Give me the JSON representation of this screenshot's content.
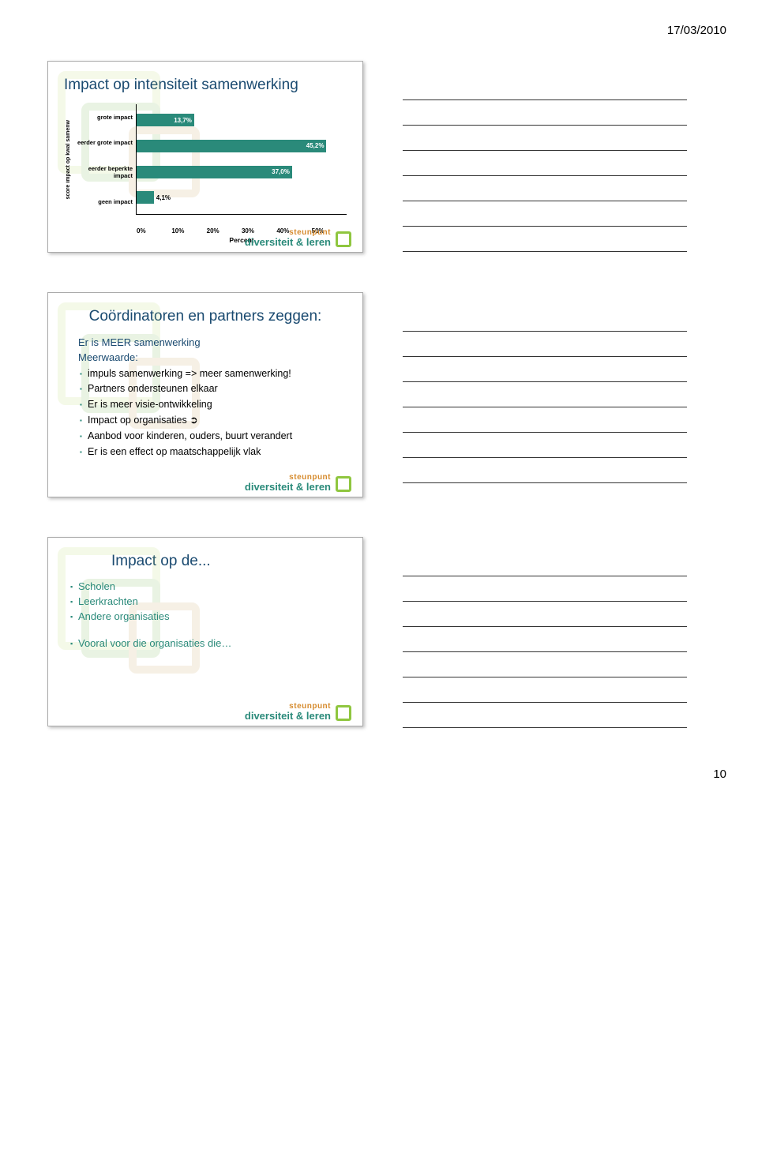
{
  "header_date": "17/03/2010",
  "page_number": "10",
  "logo": {
    "line1": "steunpunt",
    "line2": "diversiteit & leren"
  },
  "card1": {
    "title": "Impact op intensiteit samenwerking",
    "chart": {
      "type": "bar-horizontal",
      "ylabel": "score impact op kwal samenw",
      "xlabel": "Percent",
      "xticks": [
        "0%",
        "10%",
        "20%",
        "30%",
        "40%",
        "50%"
      ],
      "xmax": 50,
      "bars": [
        {
          "label": "grote impact",
          "value": 13.7,
          "display": "13,7%"
        },
        {
          "label": "eerder grote impact",
          "value": 45.2,
          "display": "45,2%"
        },
        {
          "label": "eerder beperkte impact",
          "value": 37.0,
          "display": "37,0%"
        },
        {
          "label": "geen impact",
          "value": 4.1,
          "display": "4,1%"
        }
      ],
      "bar_color": "#2a8a7a",
      "background_color": "#ffffff"
    }
  },
  "card2": {
    "title": "Coördinatoren en partners zeggen:",
    "line1": "Er is MEER samenwerking",
    "line2": "Meerwaarde:",
    "bullets": [
      "impuls samenwerking => meer samenwerking!",
      "Partners ondersteunen elkaar",
      "Er is meer visie-ontwikkeling",
      "Impact op organisaties ➲",
      "Aanbod voor kinderen, ouders, buurt verandert",
      "Er is een effect op maatschappelijk vlak"
    ]
  },
  "card3": {
    "title": "Impact op de...",
    "items": [
      "Scholen",
      "Leerkrachten",
      "Andere organisaties"
    ],
    "footer_item": "Vooral voor die organisaties die…"
  }
}
